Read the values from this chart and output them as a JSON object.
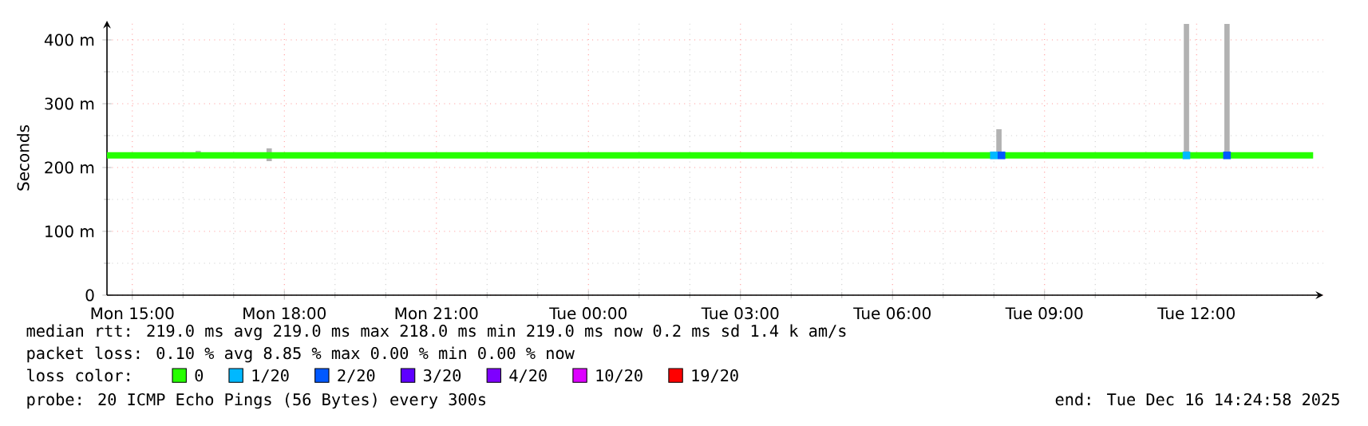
{
  "chart_data": {
    "type": "line",
    "ylabel": "Seconds",
    "xlim": [
      "2025-12-15T14:30",
      "2025-12-16T14:30"
    ],
    "ylim": [
      0,
      430
    ],
    "xticks": [
      {
        "value": "2025-12-15T15:00",
        "label": "Mon 15:00"
      },
      {
        "value": "2025-12-15T18:00",
        "label": "Mon 18:00"
      },
      {
        "value": "2025-12-15T21:00",
        "label": "Mon 21:00"
      },
      {
        "value": "2025-12-16T00:00",
        "label": "Tue 00:00"
      },
      {
        "value": "2025-12-16T03:00",
        "label": "Tue 03:00"
      },
      {
        "value": "2025-12-16T06:00",
        "label": "Tue 06:00"
      },
      {
        "value": "2025-12-16T09:00",
        "label": "Tue 09:00"
      },
      {
        "value": "2025-12-16T12:00",
        "label": "Tue 12:00"
      }
    ],
    "yticks": [
      0,
      {
        "value": 100,
        "label": "100 m"
      },
      {
        "value": 200,
        "label": "200 m"
      },
      {
        "value": 300,
        "label": "300 m"
      },
      {
        "value": 400,
        "label": "400 m"
      }
    ],
    "grid": true,
    "legend": "bottom",
    "legend_title": "loss color:",
    "series": [
      {
        "name": "0",
        "color": "#26ff00",
        "x": [
          "2025-12-15T14:30",
          "2025-12-15T15:30",
          "2025-12-15T16:18",
          "2025-12-15T16:30",
          "2025-12-15T17:30",
          "2025-12-15T17:42",
          "2025-12-15T18:30",
          "2025-12-15T19:30",
          "2025-12-15T20:30",
          "2025-12-15T21:30",
          "2025-12-15T22:30",
          "2025-12-15T23:30",
          "2025-12-16T00:30",
          "2025-12-16T01:30",
          "2025-12-16T02:30",
          "2025-12-16T03:30",
          "2025-12-16T04:30",
          "2025-12-16T05:30",
          "2025-12-16T06:30",
          "2025-12-16T07:30",
          "2025-12-16T08:06",
          "2025-12-16T08:30",
          "2025-12-16T09:30",
          "2025-12-16T10:30",
          "2025-12-16T11:30",
          "2025-12-16T11:48",
          "2025-12-16T12:30",
          "2025-12-16T12:36",
          "2025-12-16T13:30",
          "2025-12-16T14:18"
        ],
        "values": [
          219,
          219,
          219,
          219,
          219,
          219,
          219,
          219,
          219,
          219,
          219,
          219,
          219,
          219,
          219,
          219,
          219,
          219,
          219,
          219,
          219,
          219,
          219,
          219,
          219,
          219,
          219,
          219,
          219,
          219
        ],
        "errors": [
          null,
          null,
          [
            219,
            226
          ],
          null,
          null,
          [
            210,
            230
          ],
          null,
          null,
          null,
          null,
          null,
          null,
          null,
          null,
          null,
          null,
          null,
          null,
          null,
          null,
          [
            219,
            260
          ],
          null,
          null,
          null,
          null,
          [
            219,
            425
          ],
          null,
          [
            219,
            425
          ],
          null,
          null
        ]
      },
      {
        "name": "1/20",
        "color": "#00b8ff",
        "type": "scatter",
        "marker": "square",
        "x": [
          "2025-12-16T08:00",
          "2025-12-16T11:48"
        ],
        "values": [
          219,
          219
        ]
      },
      {
        "name": "2/20",
        "color": "#0059ff",
        "type": "scatter",
        "marker": "square",
        "x": [
          "2025-12-16T08:09",
          "2025-12-16T12:36"
        ],
        "values": [
          219,
          219
        ]
      },
      {
        "name": "3/20",
        "color": "#5e00ff",
        "type": "scatter",
        "marker": "square"
      },
      {
        "name": "4/20",
        "color": "#7e00ff",
        "type": "scatter",
        "marker": "square"
      },
      {
        "name": "10/20",
        "color": "#dd00ff",
        "type": "scatter",
        "marker": "square"
      },
      {
        "name": "19/20",
        "color": "#ff0000",
        "type": "scatter",
        "marker": "square"
      }
    ],
    "annotations": [
      "median rtt:  219.0 ms avg  219.0 ms max  218.0 ms min  219.0 ms now  0.2 ms sd  1.4 k am/s",
      "packet loss: 0.10 % avg  8.85 % max  0.00 % min  0.00 % now",
      "probe:       20 ICMP Echo Pings (56 Bytes) every 300s",
      "end: Tue Dec 16 14:24:58 2025"
    ]
  }
}
